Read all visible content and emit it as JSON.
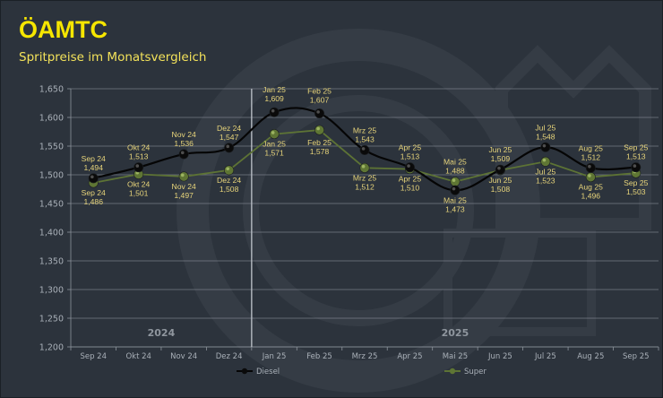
{
  "header": {
    "logo": "ÖAMTC",
    "subtitle": "Spritpreise im Monatsvergleich"
  },
  "chart_data": {
    "type": "line",
    "title": "Spritpreise im Monatsvergleich",
    "xlabel": "",
    "ylabel": "",
    "categories": [
      "Sep 24",
      "Okt 24",
      "Nov 24",
      "Dez 24",
      "Jan 25",
      "Feb 25",
      "Mrz 25",
      "Apr 25",
      "Mai 25",
      "Jun 25",
      "Jul 25",
      "Aug 25",
      "Sep 25"
    ],
    "ylim": [
      1.2,
      1.65
    ],
    "yticks": [
      1.2,
      1.25,
      1.3,
      1.35,
      1.4,
      1.45,
      1.5,
      1.55,
      1.6,
      1.65
    ],
    "ytick_labels": [
      "1,200",
      "1,250",
      "1,300",
      "1,350",
      "1,400",
      "1,450",
      "1,500",
      "1,550",
      "1,600",
      "1,650"
    ],
    "grid": true,
    "year_labels": [
      {
        "label": "2024",
        "span": [
          "Sep 24",
          "Dez 24"
        ]
      },
      {
        "label": "2025",
        "span": [
          "Jan 25",
          "Sep 25"
        ]
      }
    ],
    "series": [
      {
        "name": "Diesel",
        "color": "#050505",
        "smooth": true,
        "values": [
          1.494,
          1.513,
          1.536,
          1.547,
          1.609,
          1.607,
          1.543,
          1.513,
          1.473,
          1.509,
          1.548,
          1.512,
          1.513
        ],
        "value_labels": [
          "1,494",
          "1,513",
          "1,536",
          "1,547",
          "1,609",
          "1,607",
          "1,543",
          "1,513",
          "1,473",
          "1,509",
          "1,548",
          "1,512",
          "1,513"
        ]
      },
      {
        "name": "Super",
        "color": "#5d7335",
        "smooth": false,
        "values": [
          1.486,
          1.501,
          1.497,
          1.508,
          1.571,
          1.578,
          1.512,
          1.51,
          1.488,
          1.508,
          1.523,
          1.496,
          1.503
        ],
        "value_labels": [
          "1,486",
          "1,501",
          "1,497",
          "1,508",
          "1,571",
          "1,578",
          "1,512",
          "1,510",
          "1,488",
          "1,508",
          "1,523",
          "1,496",
          "1,503"
        ]
      }
    ],
    "legend": {
      "placement": "bottom",
      "entries": [
        "Diesel",
        "Super"
      ]
    }
  }
}
